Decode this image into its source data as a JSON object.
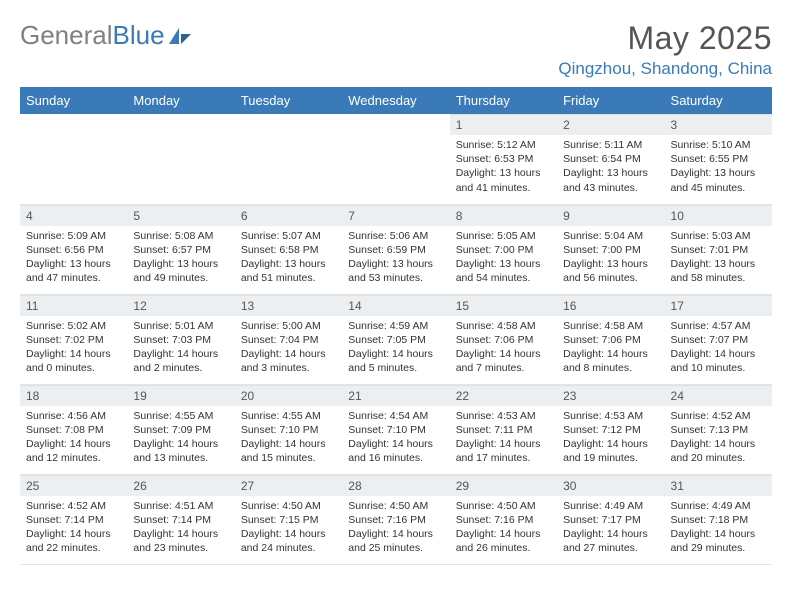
{
  "logo": {
    "text_gray": "General",
    "text_blue": "Blue"
  },
  "title": "May 2025",
  "location": "Qingzhou, Shandong, China",
  "colors": {
    "header_bg": "#3a7ab8",
    "header_text": "#ffffff",
    "daynum_bg": "#eceff1",
    "text": "#333333",
    "logo_gray": "#808080",
    "logo_blue": "#3a7ab8"
  },
  "weekdays": [
    "Sunday",
    "Monday",
    "Tuesday",
    "Wednesday",
    "Thursday",
    "Friday",
    "Saturday"
  ],
  "weeks": [
    [
      null,
      null,
      null,
      null,
      {
        "n": "1",
        "sunrise": "5:12 AM",
        "sunset": "6:53 PM",
        "dayl": "13 hours and 41 minutes."
      },
      {
        "n": "2",
        "sunrise": "5:11 AM",
        "sunset": "6:54 PM",
        "dayl": "13 hours and 43 minutes."
      },
      {
        "n": "3",
        "sunrise": "5:10 AM",
        "sunset": "6:55 PM",
        "dayl": "13 hours and 45 minutes."
      }
    ],
    [
      {
        "n": "4",
        "sunrise": "5:09 AM",
        "sunset": "6:56 PM",
        "dayl": "13 hours and 47 minutes."
      },
      {
        "n": "5",
        "sunrise": "5:08 AM",
        "sunset": "6:57 PM",
        "dayl": "13 hours and 49 minutes."
      },
      {
        "n": "6",
        "sunrise": "5:07 AM",
        "sunset": "6:58 PM",
        "dayl": "13 hours and 51 minutes."
      },
      {
        "n": "7",
        "sunrise": "5:06 AM",
        "sunset": "6:59 PM",
        "dayl": "13 hours and 53 minutes."
      },
      {
        "n": "8",
        "sunrise": "5:05 AM",
        "sunset": "7:00 PM",
        "dayl": "13 hours and 54 minutes."
      },
      {
        "n": "9",
        "sunrise": "5:04 AM",
        "sunset": "7:00 PM",
        "dayl": "13 hours and 56 minutes."
      },
      {
        "n": "10",
        "sunrise": "5:03 AM",
        "sunset": "7:01 PM",
        "dayl": "13 hours and 58 minutes."
      }
    ],
    [
      {
        "n": "11",
        "sunrise": "5:02 AM",
        "sunset": "7:02 PM",
        "dayl": "14 hours and 0 minutes."
      },
      {
        "n": "12",
        "sunrise": "5:01 AM",
        "sunset": "7:03 PM",
        "dayl": "14 hours and 2 minutes."
      },
      {
        "n": "13",
        "sunrise": "5:00 AM",
        "sunset": "7:04 PM",
        "dayl": "14 hours and 3 minutes."
      },
      {
        "n": "14",
        "sunrise": "4:59 AM",
        "sunset": "7:05 PM",
        "dayl": "14 hours and 5 minutes."
      },
      {
        "n": "15",
        "sunrise": "4:58 AM",
        "sunset": "7:06 PM",
        "dayl": "14 hours and 7 minutes."
      },
      {
        "n": "16",
        "sunrise": "4:58 AM",
        "sunset": "7:06 PM",
        "dayl": "14 hours and 8 minutes."
      },
      {
        "n": "17",
        "sunrise": "4:57 AM",
        "sunset": "7:07 PM",
        "dayl": "14 hours and 10 minutes."
      }
    ],
    [
      {
        "n": "18",
        "sunrise": "4:56 AM",
        "sunset": "7:08 PM",
        "dayl": "14 hours and 12 minutes."
      },
      {
        "n": "19",
        "sunrise": "4:55 AM",
        "sunset": "7:09 PM",
        "dayl": "14 hours and 13 minutes."
      },
      {
        "n": "20",
        "sunrise": "4:55 AM",
        "sunset": "7:10 PM",
        "dayl": "14 hours and 15 minutes."
      },
      {
        "n": "21",
        "sunrise": "4:54 AM",
        "sunset": "7:10 PM",
        "dayl": "14 hours and 16 minutes."
      },
      {
        "n": "22",
        "sunrise": "4:53 AM",
        "sunset": "7:11 PM",
        "dayl": "14 hours and 17 minutes."
      },
      {
        "n": "23",
        "sunrise": "4:53 AM",
        "sunset": "7:12 PM",
        "dayl": "14 hours and 19 minutes."
      },
      {
        "n": "24",
        "sunrise": "4:52 AM",
        "sunset": "7:13 PM",
        "dayl": "14 hours and 20 minutes."
      }
    ],
    [
      {
        "n": "25",
        "sunrise": "4:52 AM",
        "sunset": "7:14 PM",
        "dayl": "14 hours and 22 minutes."
      },
      {
        "n": "26",
        "sunrise": "4:51 AM",
        "sunset": "7:14 PM",
        "dayl": "14 hours and 23 minutes."
      },
      {
        "n": "27",
        "sunrise": "4:50 AM",
        "sunset": "7:15 PM",
        "dayl": "14 hours and 24 minutes."
      },
      {
        "n": "28",
        "sunrise": "4:50 AM",
        "sunset": "7:16 PM",
        "dayl": "14 hours and 25 minutes."
      },
      {
        "n": "29",
        "sunrise": "4:50 AM",
        "sunset": "7:16 PM",
        "dayl": "14 hours and 26 minutes."
      },
      {
        "n": "30",
        "sunrise": "4:49 AM",
        "sunset": "7:17 PM",
        "dayl": "14 hours and 27 minutes."
      },
      {
        "n": "31",
        "sunrise": "4:49 AM",
        "sunset": "7:18 PM",
        "dayl": "14 hours and 29 minutes."
      }
    ]
  ],
  "labels": {
    "sunrise": "Sunrise: ",
    "sunset": "Sunset: ",
    "daylight": "Daylight: "
  }
}
